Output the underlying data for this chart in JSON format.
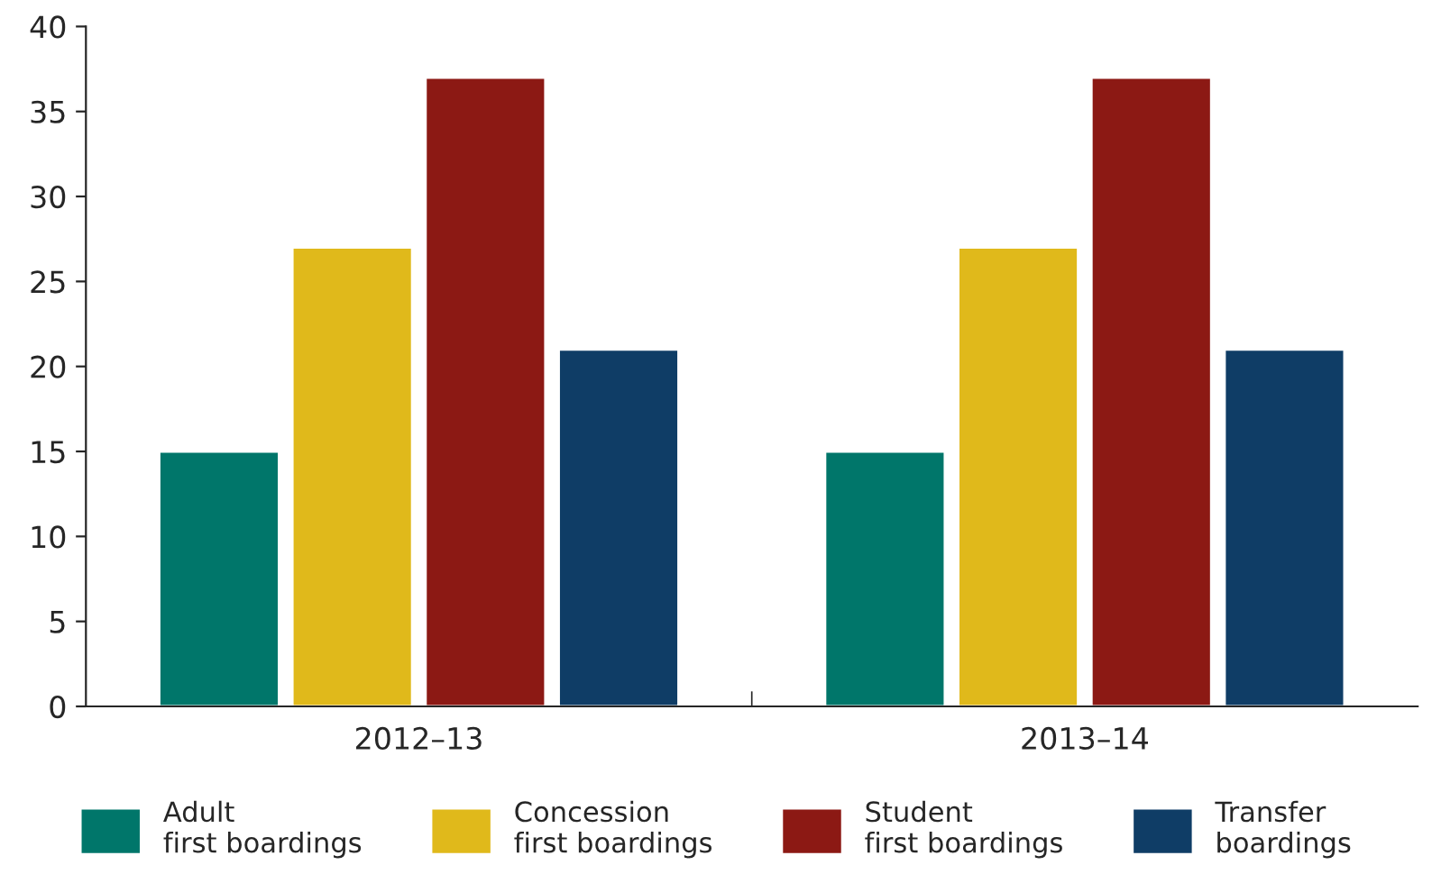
{
  "chart_data": {
    "type": "bar",
    "categories": [
      "2012–13",
      "2013–14"
    ],
    "series": [
      {
        "name": "Adult\nfirst boardings",
        "color": "#00766a",
        "values": [
          15,
          15
        ]
      },
      {
        "name": "Concession\nfirst boardings",
        "color": "#e0b91b",
        "values": [
          27,
          27
        ]
      },
      {
        "name": "Student\nfirst boardings",
        "color": "#8c1914",
        "values": [
          37,
          37
        ]
      },
      {
        "name": "Transfer\nboardings",
        "color": "#0f3d66",
        "values": [
          21,
          21
        ]
      }
    ],
    "ylim": [
      0,
      40
    ],
    "yticks": [
      0,
      5,
      10,
      15,
      20,
      25,
      30,
      35,
      40
    ],
    "grid": false,
    "legend": "bottom"
  }
}
